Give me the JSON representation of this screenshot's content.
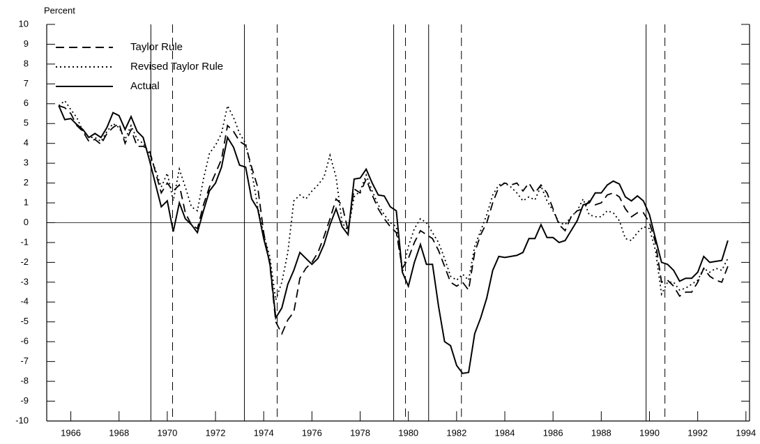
{
  "chart_data": {
    "type": "line",
    "ylabel": "Percent",
    "xlim": [
      1965.0,
      1994.15
    ],
    "ylim": [
      -10,
      10
    ],
    "xticks": [
      1966,
      1968,
      1970,
      1972,
      1974,
      1976,
      1978,
      1980,
      1982,
      1984,
      1986,
      1988,
      1990,
      1992,
      1994
    ],
    "yticks": [
      -10,
      -9,
      -8,
      -7,
      -6,
      -5,
      -4,
      -3,
      -2,
      -1,
      0,
      1,
      2,
      3,
      4,
      5,
      6,
      7,
      8,
      9,
      10
    ],
    "zero_line": true,
    "legend": "upper left",
    "vlines": [
      {
        "linestyle": "solid",
        "values": [
          1969.32,
          1973.2,
          1979.39,
          1980.84,
          1989.86
        ]
      },
      {
        "linestyle": "dashed",
        "values": [
          1970.22,
          1974.56,
          1979.88,
          1982.2,
          1990.64
        ]
      }
    ],
    "x": [
      1965.5,
      1965.75,
      1966,
      1966.25,
      1966.5,
      1966.75,
      1967,
      1967.25,
      1967.5,
      1967.75,
      1968,
      1968.25,
      1968.5,
      1968.75,
      1969,
      1969.25,
      1969.5,
      1969.75,
      1970,
      1970.25,
      1970.5,
      1970.75,
      1971,
      1971.25,
      1971.5,
      1971.75,
      1972,
      1972.25,
      1972.5,
      1972.75,
      1973,
      1973.25,
      1973.5,
      1973.75,
      1974,
      1974.25,
      1974.5,
      1974.75,
      1975,
      1975.25,
      1975.5,
      1975.75,
      1976,
      1976.25,
      1976.5,
      1976.75,
      1977,
      1977.25,
      1977.5,
      1977.75,
      1978,
      1978.25,
      1978.5,
      1978.75,
      1979,
      1979.25,
      1979.5,
      1979.75,
      1980,
      1980.25,
      1980.5,
      1980.75,
      1981,
      1981.25,
      1981.5,
      1981.75,
      1982,
      1982.25,
      1982.5,
      1982.75,
      1983,
      1983.25,
      1983.5,
      1983.75,
      1984,
      1984.25,
      1984.5,
      1984.75,
      1985,
      1985.25,
      1985.5,
      1985.75,
      1986,
      1986.25,
      1986.5,
      1986.75,
      1987,
      1987.25,
      1987.5,
      1987.75,
      1988,
      1988.25,
      1988.5,
      1988.75,
      1989,
      1989.25,
      1989.5,
      1989.75,
      1990,
      1990.25,
      1990.5,
      1990.75,
      1991,
      1991.25,
      1991.5,
      1991.75,
      1992,
      1992.25,
      1992.5,
      1992.75,
      1993,
      1993.25
    ],
    "series": [
      {
        "name": "Taylor Rule",
        "color": "#000000",
        "linestyle": "dashed",
        "values": [
          5.9,
          5.8,
          5.5,
          4.9,
          4.6,
          4.1,
          4.2,
          3.95,
          4.5,
          4.8,
          5.0,
          4.0,
          4.7,
          3.85,
          3.85,
          3.7,
          2.6,
          1.5,
          2.0,
          1.6,
          1.9,
          0.5,
          -0.1,
          -0.3,
          0.9,
          1.8,
          2.5,
          3.2,
          4.9,
          4.6,
          4.1,
          3.9,
          2.8,
          1.8,
          -0.5,
          -2.1,
          -5.0,
          -5.6,
          -4.9,
          -4.5,
          -2.8,
          -2.3,
          -2.0,
          -1.5,
          -0.7,
          0.2,
          1.2,
          0.9,
          -0.4,
          1.7,
          1.5,
          2.2,
          1.4,
          0.7,
          0.2,
          -0.2,
          -0.5,
          -2.3,
          -1.8,
          -1.0,
          -0.4,
          -0.6,
          -0.8,
          -1.4,
          -2.2,
          -3.0,
          -3.2,
          -3.0,
          -3.4,
          -1.5,
          -0.6,
          0.0,
          1.0,
          1.8,
          2.0,
          1.9,
          2.0,
          1.6,
          2.0,
          1.5,
          1.9,
          1.5,
          0.7,
          -0.1,
          -0.4,
          0.3,
          0.6,
          0.7,
          1.1,
          0.9,
          1.0,
          1.4,
          1.5,
          1.3,
          0.7,
          0.3,
          0.5,
          0.5,
          0.0,
          -1.0,
          -3.0,
          -2.9,
          -3.2,
          -3.7,
          -3.5,
          -3.5,
          -3.0,
          -2.3,
          -2.7,
          -2.9,
          -3.0,
          -2.2
        ]
      },
      {
        "name": "Revised Taylor Rule",
        "color": "#000000",
        "linestyle": "dotted",
        "values": [
          5.9,
          6.15,
          5.7,
          5.3,
          4.6,
          4.3,
          4.3,
          4.1,
          4.6,
          5.0,
          4.8,
          4.2,
          4.9,
          4.2,
          4.0,
          3.5,
          2.7,
          1.8,
          2.5,
          1.1,
          2.7,
          1.8,
          0.8,
          0.6,
          2.2,
          3.5,
          3.9,
          4.5,
          5.9,
          5.3,
          4.5,
          4.0,
          2.6,
          0.8,
          -0.6,
          -1.7,
          -3.9,
          -3.0,
          -1.5,
          1.1,
          1.4,
          1.2,
          1.6,
          1.9,
          2.3,
          3.4,
          2.3,
          0.0,
          -0.4,
          1.3,
          1.6,
          2.4,
          1.6,
          0.9,
          0.4,
          0.0,
          -0.2,
          -2.5,
          -1.2,
          -0.3,
          0.2,
          0.0,
          -0.5,
          -1.0,
          -1.8,
          -2.7,
          -2.9,
          -2.6,
          -2.9,
          -1.2,
          -0.4,
          0.4,
          1.4,
          1.9,
          2.0,
          1.8,
          1.5,
          1.1,
          1.3,
          1.15,
          1.85,
          1.1,
          0.6,
          0.0,
          -0.1,
          0.3,
          0.6,
          1.2,
          0.4,
          0.3,
          0.3,
          0.6,
          0.5,
          0.1,
          -0.8,
          -0.9,
          -0.5,
          -0.2,
          -0.3,
          -1.4,
          -3.6,
          -3.0,
          -3.0,
          -3.4,
          -3.3,
          -3.1,
          -2.9,
          -2.3,
          -2.5,
          -2.3,
          -2.4,
          -1.8
        ]
      },
      {
        "name": "Actual",
        "color": "#000000",
        "linestyle": "solid",
        "values": [
          5.9,
          5.2,
          5.25,
          4.95,
          4.7,
          4.3,
          4.5,
          4.3,
          4.8,
          5.55,
          5.4,
          4.7,
          5.35,
          4.6,
          4.3,
          3.2,
          2.0,
          0.8,
          1.1,
          -0.45,
          1.0,
          0.2,
          -0.1,
          -0.5,
          0.6,
          1.6,
          2.0,
          2.8,
          4.3,
          3.8,
          2.9,
          2.8,
          1.2,
          0.7,
          -0.8,
          -2.0,
          -4.8,
          -4.3,
          -3.1,
          -2.4,
          -1.5,
          -1.8,
          -2.1,
          -1.8,
          -1.1,
          -0.1,
          0.7,
          -0.2,
          -0.6,
          2.2,
          2.25,
          2.7,
          2.0,
          1.4,
          1.35,
          0.8,
          0.6,
          -2.5,
          -3.2,
          -2.0,
          -1.1,
          -2.1,
          -2.1,
          -4.2,
          -6.0,
          -6.2,
          -7.2,
          -7.6,
          -7.55,
          -5.6,
          -4.8,
          -3.8,
          -2.4,
          -1.7,
          -1.75,
          -1.7,
          -1.65,
          -1.5,
          -0.8,
          -0.8,
          -0.1,
          -0.75,
          -0.75,
          -1.0,
          -0.9,
          -0.4,
          0.1,
          0.9,
          1.0,
          1.5,
          1.5,
          1.9,
          2.1,
          1.95,
          1.3,
          1.1,
          1.35,
          1.1,
          0.4,
          -0.8,
          -2.0,
          -2.1,
          -2.4,
          -2.95,
          -2.8,
          -2.8,
          -2.5,
          -1.7,
          -2.0,
          -1.95,
          -1.9,
          -0.9
        ]
      }
    ]
  }
}
